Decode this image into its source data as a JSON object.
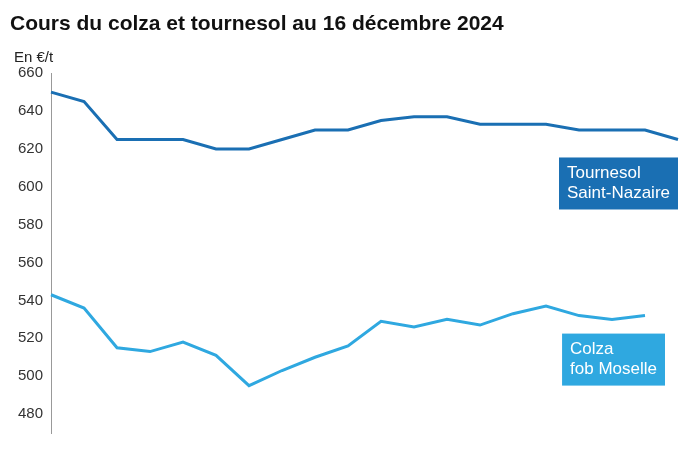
{
  "chart_data": {
    "type": "line",
    "title": "Cours du colza et tournesol au 16 décembre 2024",
    "y_label": "En €/t",
    "categories": [
      null,
      null,
      null,
      null,
      null,
      null,
      null,
      null,
      null,
      null,
      null,
      null,
      null,
      null,
      null,
      null,
      null,
      null,
      null,
      null
    ],
    "series": [
      {
        "name": "Tournesol Saint-Nazaire",
        "color": "#1a6fb3",
        "values": [
          650,
          645,
          625,
          625,
          625,
          620,
          620,
          625,
          630,
          630,
          635,
          637,
          637,
          633,
          633,
          633,
          630,
          630,
          630,
          625
        ]
      },
      {
        "name": "Colza fob Moselle",
        "color": "#2fa8e0",
        "values": [
          543,
          536,
          515,
          513,
          518,
          511,
          495,
          503,
          510,
          516,
          529,
          526,
          530,
          527,
          533,
          537,
          532,
          530,
          532,
          null
        ]
      }
    ],
    "ylim": [
      470,
      660
    ],
    "yticks": [
      480,
      500,
      520,
      540,
      560,
      580,
      600,
      620,
      640,
      660
    ],
    "grid": false,
    "tick_labels": "y"
  }
}
